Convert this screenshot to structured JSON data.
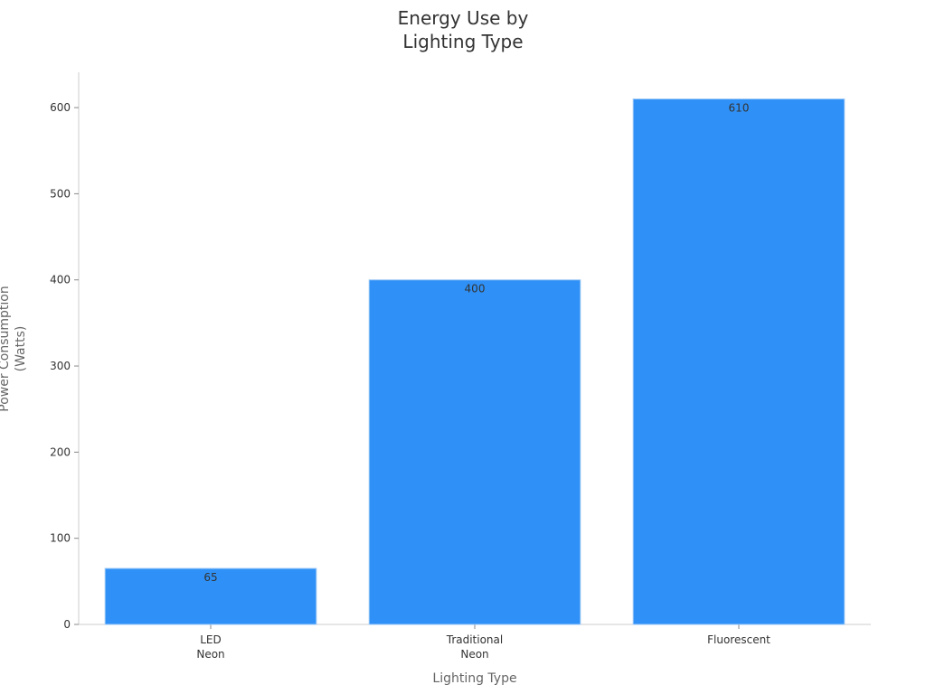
{
  "chart_data": {
    "type": "bar",
    "title": "Energy Use by\nLighting Type",
    "x_label": "Lighting Type",
    "y_label": "Power Consumption\n(Watts)",
    "categories": [
      "LED\nNeon",
      "Traditional\nNeon",
      "Fluorescent"
    ],
    "values": [
      65,
      400,
      610
    ],
    "color": "#2f91f7",
    "ylim": [
      0,
      641
    ],
    "yticks": [
      0,
      100,
      200,
      300,
      400,
      500,
      600
    ]
  }
}
